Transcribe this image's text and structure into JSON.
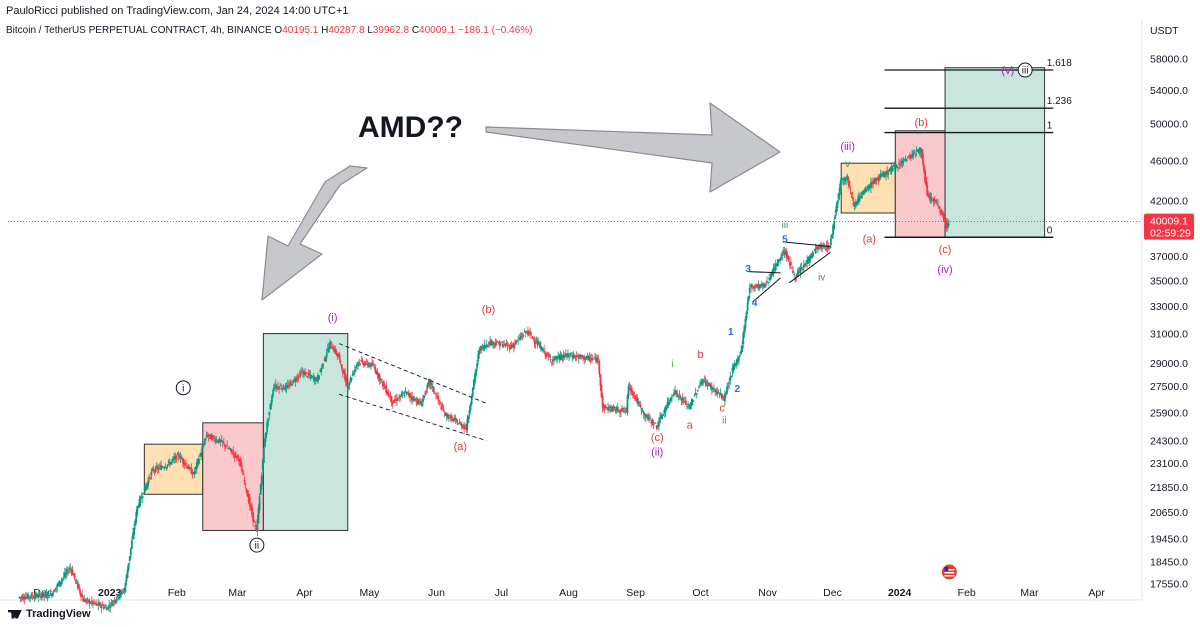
{
  "header": {
    "published": "PauloRicci published on TradingView.com, Jan 24, 2024 14:00 UTC+1"
  },
  "symbol": {
    "name": "Bitcoin / TetherUS PERPETUAL CONTRACT, 4h, BINANCE",
    "o_label": "O",
    "o": "40195.1",
    "h_label": "H",
    "h": "40287.8",
    "l_label": "L",
    "l": "39962.8",
    "c_label": "C",
    "c": "40009.1",
    "change": "−186.1 (−0.46%)"
  },
  "currency": "USDT",
  "price_tag": {
    "price": "40009.1",
    "countdown": "02:59:29"
  },
  "branding": "TradingView",
  "colors": {
    "up": "#089981",
    "down": "#f23645",
    "wave_purple": "#9c27b0",
    "wave_red": "#e53935",
    "wave_green": "#43a047",
    "wave_blue": "#2962ff",
    "box_orange": "#ffe0b2",
    "box_red": "#fbc8cc",
    "box_green": "#c8e6dc"
  },
  "chart_data": {
    "type": "candlestick",
    "y_tick_labels": [
      "58000.0",
      "54000.0",
      "50000.0",
      "46000.0",
      "42000.0",
      "37000.0",
      "35000.0",
      "33000.0",
      "31000.0",
      "29000.0",
      "27500.0",
      "25900.0",
      "24300.0",
      "23100.0",
      "21850.0",
      "20650.0",
      "19450.0",
      "18450.0",
      "17550.0"
    ],
    "x_tick_labels": [
      "Dec",
      "2023",
      "Feb",
      "Mar",
      "Apr",
      "May",
      "Jun",
      "Jul",
      "Aug",
      "Sep",
      "Oct",
      "Nov",
      "Dec",
      "2024",
      "Feb",
      "Mar",
      "Apr"
    ],
    "y_scale": "log",
    "ylim": [
      16900,
      60500
    ],
    "annotation_title": "AMD??",
    "fib_levels": [
      {
        "label": "1.618",
        "price": 56500
      },
      {
        "label": "1.236",
        "price": 51800
      },
      {
        "label": "1",
        "price": 49000
      },
      {
        "label": "0",
        "price": 38600
      }
    ],
    "wave_labels": [
      {
        "text": "(i)",
        "color": "purple",
        "date": "2023-04-14",
        "price": 32200
      },
      {
        "text": "i",
        "circled": true,
        "date": "2023-02-04",
        "price": 27400
      },
      {
        "text": "ii",
        "circled": true,
        "date": "2023-03-10",
        "price": 19150
      },
      {
        "text": "(a)",
        "color": "red",
        "date": "2023-06-12",
        "price": 24000
      },
      {
        "text": "(b)",
        "color": "red",
        "date": "2023-06-25",
        "price": 32800
      },
      {
        "text": "(c)",
        "color": "red",
        "date": "2023-09-11",
        "price": 24500
      },
      {
        "text": "(ii)",
        "color": "purple",
        "date": "2023-09-11",
        "price": 23700
      },
      {
        "text": "i",
        "color": "green",
        "date": "2023-09-18",
        "price": 29000
      },
      {
        "text": "a",
        "color": "red",
        "date": "2023-09-26",
        "price": 25200
      },
      {
        "text": "b",
        "color": "red",
        "date": "2023-10-01",
        "price": 29600
      },
      {
        "text": "c",
        "color": "red",
        "date": "2023-10-11",
        "price": 26200
      },
      {
        "text": "ii",
        "color": "green",
        "date": "2023-10-12",
        "price": 25500
      },
      {
        "text": "1",
        "color": "blue",
        "date": "2023-10-15",
        "price": 31200
      },
      {
        "text": "2",
        "color": "blue",
        "date": "2023-10-18",
        "price": 27400
      },
      {
        "text": "3",
        "color": "blue",
        "date": "2023-10-23",
        "price": 36000
      },
      {
        "text": "4",
        "color": "blue",
        "date": "2023-10-26",
        "price": 33300
      },
      {
        "text": "5",
        "color": "blue",
        "date": "2023-11-09",
        "price": 38500
      },
      {
        "text": "iii",
        "color": "green",
        "date": "2023-11-09",
        "price": 39800
      },
      {
        "text": "iv",
        "color": "green",
        "date": "2023-11-26",
        "price": 35300
      },
      {
        "text": "(iii)",
        "color": "purple",
        "date": "2023-12-08",
        "price": 47500
      },
      {
        "text": "v",
        "color": "green",
        "date": "2023-12-08",
        "price": 45700
      },
      {
        "text": "(a)",
        "color": "red",
        "date": "2023-12-18",
        "price": 38500
      },
      {
        "text": "(b)",
        "color": "red",
        "date": "2024-01-11",
        "price": 50200
      },
      {
        "text": "(c)",
        "color": "red",
        "date": "2024-01-22",
        "price": 37600
      },
      {
        "text": "(iv)",
        "color": "purple",
        "date": "2024-01-22",
        "price": 35900
      },
      {
        "text": "(v)",
        "color": "purple",
        "date": "2024-02-20",
        "price": 56500
      },
      {
        "text": "iii",
        "circled": true,
        "date": "2024-02-28",
        "price": 56500
      }
    ]
  }
}
